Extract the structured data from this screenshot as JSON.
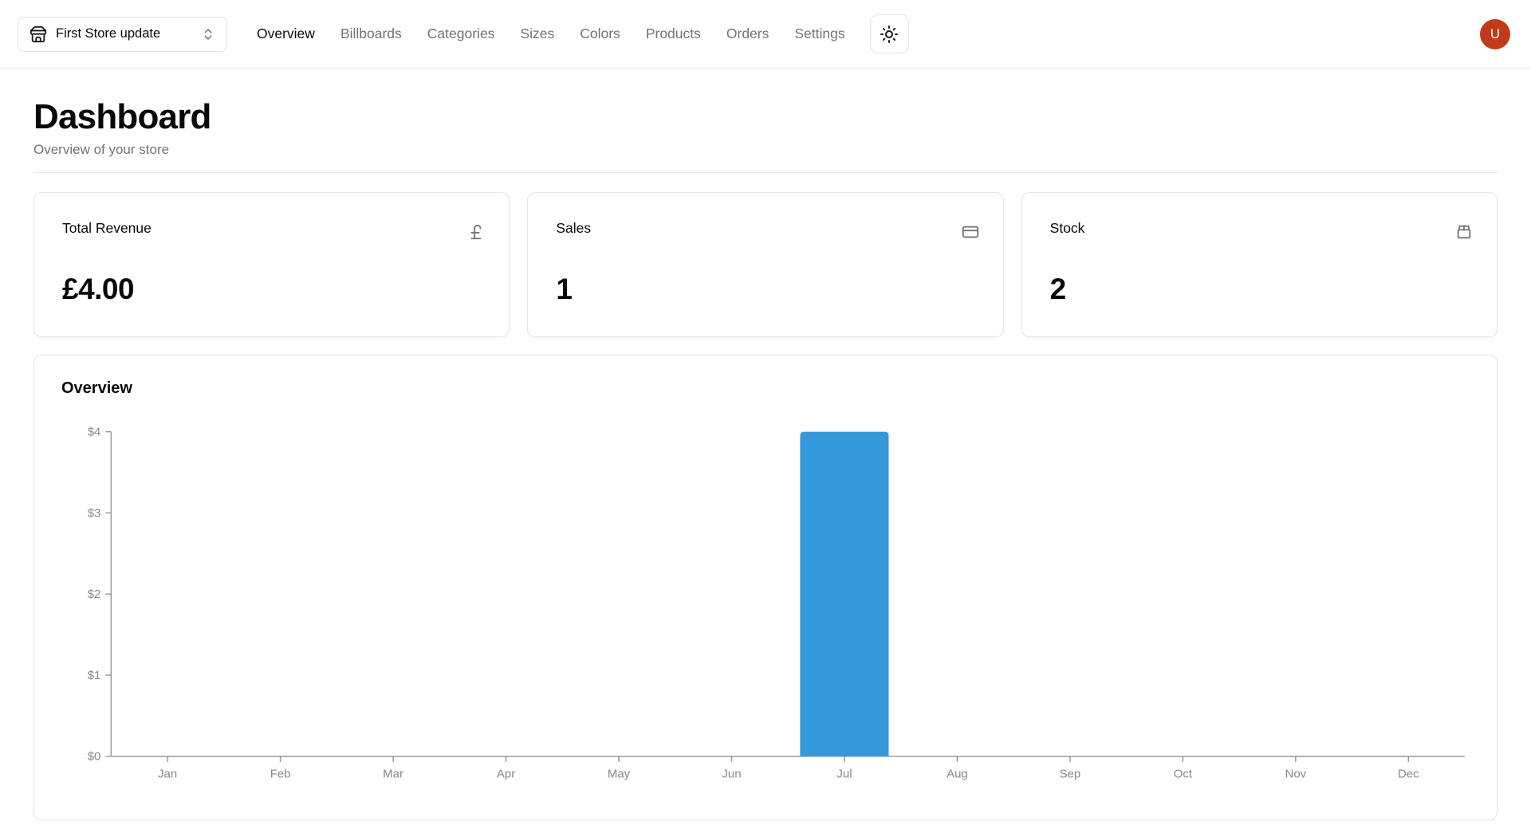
{
  "navbar": {
    "store_selector": {
      "label": "First Store update"
    },
    "items": [
      {
        "label": "Overview",
        "active": true
      },
      {
        "label": "Billboards",
        "active": false
      },
      {
        "label": "Categories",
        "active": false
      },
      {
        "label": "Sizes",
        "active": false
      },
      {
        "label": "Colors",
        "active": false
      },
      {
        "label": "Products",
        "active": false
      },
      {
        "label": "Orders",
        "active": false
      },
      {
        "label": "Settings",
        "active": false
      }
    ],
    "avatar_initial": "U",
    "avatar_color": "#c23a17"
  },
  "page": {
    "title": "Dashboard",
    "subtitle": "Overview of your store"
  },
  "stats": [
    {
      "title": "Total Revenue",
      "value": "£4.00",
      "icon": "pound-sterling-icon"
    },
    {
      "title": "Sales",
      "value": "1",
      "icon": "credit-card-icon"
    },
    {
      "title": "Stock",
      "value": "2",
      "icon": "package-icon"
    }
  ],
  "chart_card": {
    "title": "Overview"
  },
  "chart_data": {
    "type": "bar",
    "title": "Overview",
    "categories": [
      "Jan",
      "Feb",
      "Mar",
      "Apr",
      "May",
      "Jun",
      "Jul",
      "Aug",
      "Sep",
      "Oct",
      "Nov",
      "Dec"
    ],
    "values": [
      0,
      0,
      0,
      0,
      0,
      0,
      4,
      0,
      0,
      0,
      0,
      0
    ],
    "xlabel": "",
    "ylabel": "",
    "ylim": [
      0,
      4
    ],
    "y_ticks": [
      "$0",
      "$1",
      "$2",
      "$3",
      "$4"
    ],
    "y_tick_prefix": "$",
    "grid": false,
    "legend": false,
    "bar_color": "#3498db",
    "axis_color": "#999999",
    "tick_color": "#888888"
  }
}
